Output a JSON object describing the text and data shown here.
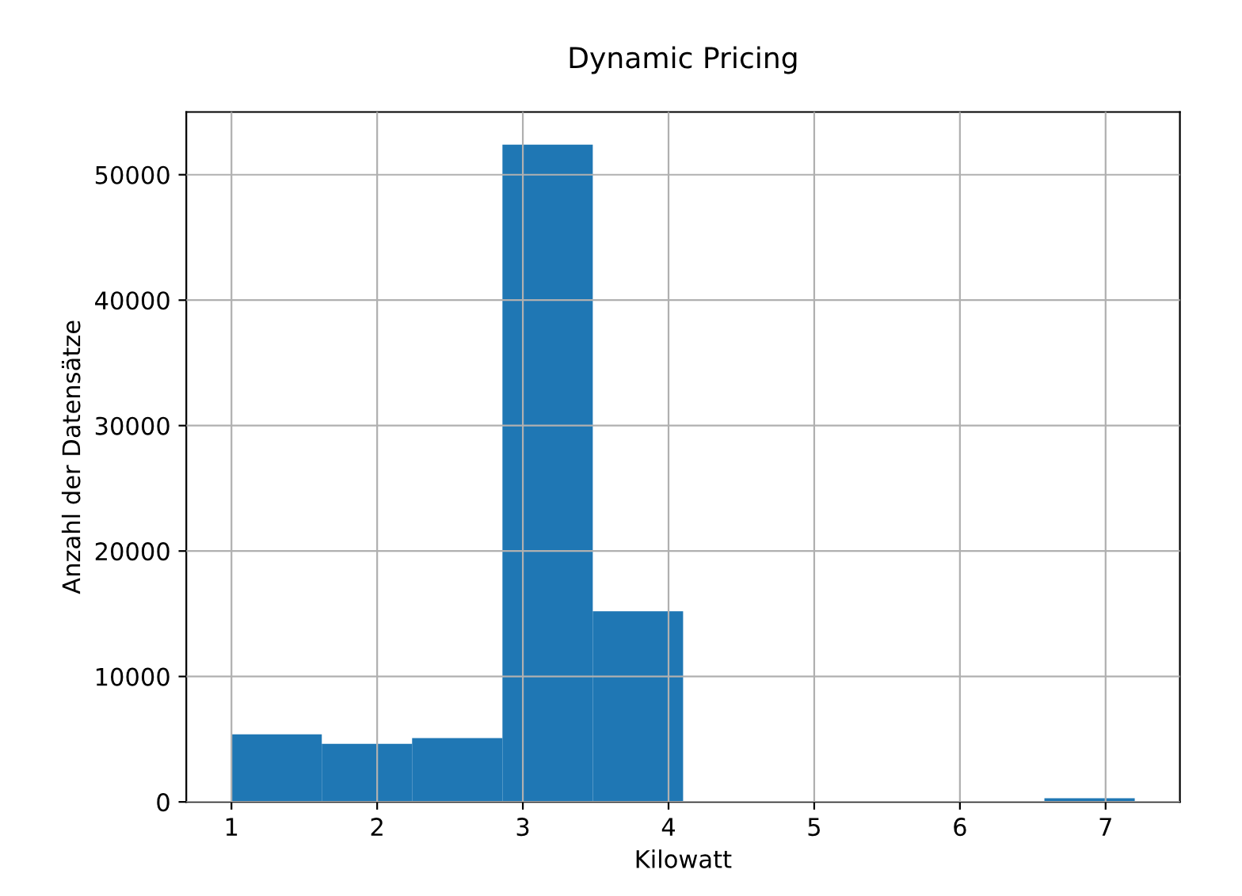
{
  "chart_data": {
    "type": "histogram",
    "title": "Dynamic Pricing",
    "xlabel": "Kilowatt",
    "ylabel": "Anzahl der Datensätze",
    "bins": [
      1.0,
      1.62,
      2.24,
      2.86,
      3.48,
      4.1,
      4.72,
      5.34,
      5.96,
      6.58,
      7.2
    ],
    "values": [
      5390,
      4630,
      5090,
      52400,
      15200,
      0,
      0,
      0,
      0,
      300
    ],
    "color": "#1f77b4",
    "xlim": [
      0.69,
      7.51
    ],
    "xticks": [
      1,
      2,
      3,
      4,
      5,
      6,
      7
    ],
    "ylim": [
      0,
      55000
    ],
    "yticks": [
      0,
      10000,
      20000,
      30000,
      40000,
      50000
    ],
    "grid": true
  }
}
